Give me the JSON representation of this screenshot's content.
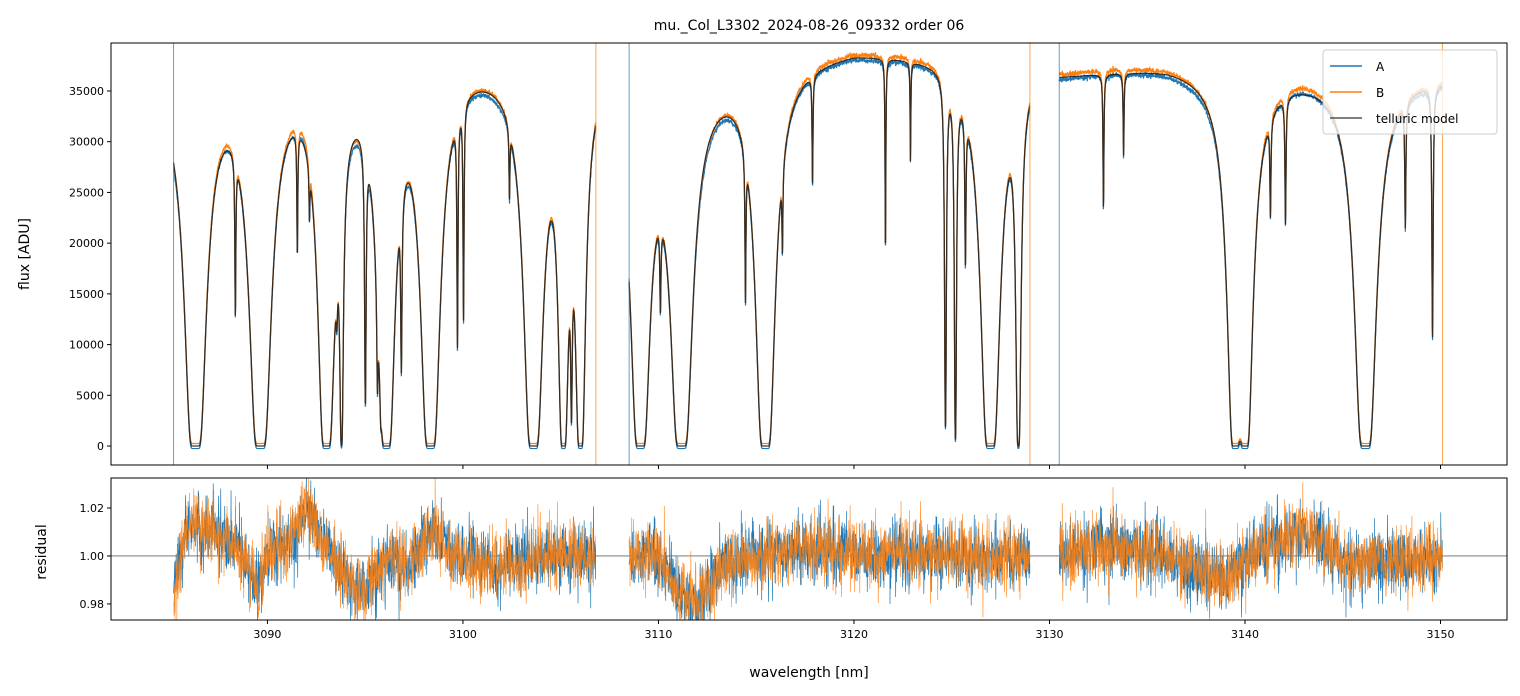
{
  "chart_data": [
    {
      "type": "line",
      "title": "mu._Col_L3302_2024-08-26_09332  order 06",
      "xlabel": "wavelength [nm]",
      "ylabel": "flux [ADU]",
      "xlim": [
        3082.0,
        3153.4
      ],
      "ylim": [
        -1870,
        39730
      ],
      "x_ticks": [
        3090,
        3100,
        3110,
        3120,
        3130,
        3140,
        3150
      ],
      "y_ticks": [
        0,
        5000,
        10000,
        15000,
        20000,
        25000,
        30000,
        35000
      ],
      "y_tick_labels": [
        "0",
        "5000",
        "10000",
        "15000",
        "20000",
        "25000",
        "30000",
        "35000"
      ],
      "legend": {
        "placement": "top-right",
        "entries": [
          "A",
          "B",
          "telluric model"
        ]
      },
      "series": [
        {
          "name": "A",
          "color": "#1f77b4"
        },
        {
          "name": "B",
          "color": "#ff7f0e"
        },
        {
          "name": "telluric model",
          "color": "#000000"
        }
      ],
      "segments": [
        {
          "range": [
            3085.2,
            3106.8
          ],
          "continuum": [
            [
              3085.2,
              37000
            ],
            [
              3090,
              37800
            ],
            [
              3100,
              38600
            ],
            [
              3106.8,
              37800
            ]
          ],
          "lines": [
            [
              3086.32,
              40,
              0.09
            ],
            [
              3088.36,
              0.8,
              0.025
            ],
            [
              3089.64,
              40,
              0.09
            ],
            [
              3091.53,
              0.5,
              0.025
            ],
            [
              3092.15,
              0.2,
              0.025
            ],
            [
              3093.02,
              40,
              0.07
            ],
            [
              3093.55,
              0.3,
              0.04
            ],
            [
              3093.79,
              6,
              0.04
            ],
            [
              3095.01,
              2,
              0.03
            ],
            [
              3095.63,
              1,
              0.03
            ],
            [
              3095.8,
              0.8,
              0.03
            ],
            [
              3096.09,
              40,
              0.07
            ],
            [
              3096.85,
              1.2,
              0.03
            ],
            [
              3098.34,
              40,
              0.08
            ],
            [
              3099.72,
              1.2,
              0.025
            ],
            [
              3100.03,
              1.0,
              0.025
            ],
            [
              3102.38,
              0.25,
              0.025
            ],
            [
              3103.61,
              40,
              0.08
            ],
            [
              3105.14,
              20,
              0.06
            ],
            [
              3105.55,
              2.0,
              0.03
            ],
            [
              3106.01,
              20,
              0.06
            ]
          ]
        },
        {
          "range": [
            3108.5,
            3129.0
          ],
          "continuum": [
            [
              3108.5,
              36000
            ],
            [
              3114,
              37500
            ],
            [
              3120,
              39200
            ],
            [
              3129,
              38000
            ]
          ],
          "lines": [
            [
              3109.08,
              40,
              0.08
            ],
            [
              3110.1,
              0.5,
              0.03
            ],
            [
              3111.18,
              40,
              0.09
            ],
            [
              3114.45,
              0.7,
              0.025
            ],
            [
              3115.47,
              40,
              0.08
            ],
            [
              3116.34,
              0.35,
              0.025
            ],
            [
              3117.88,
              0.35,
              0.025
            ],
            [
              3121.61,
              0.7,
              0.02
            ],
            [
              3122.89,
              0.3,
              0.02
            ],
            [
              3124.68,
              3,
              0.03
            ],
            [
              3125.19,
              4,
              0.03
            ],
            [
              3125.7,
              0.6,
              0.03
            ],
            [
              3126.98,
              40,
              0.08
            ],
            [
              3128.41,
              8,
              0.05
            ]
          ]
        },
        {
          "range": [
            3130.5,
            3150.1
          ],
          "continuum": [
            [
              3130.5,
              36500
            ],
            [
              3136,
              37500
            ],
            [
              3143,
              36800
            ],
            [
              3150.1,
              36500
            ]
          ],
          "lines": [
            [
              3132.76,
              0.45,
              0.025
            ],
            [
              3133.79,
              0.25,
              0.025
            ],
            [
              3139.5,
              30,
              0.07
            ],
            [
              3140.0,
              30,
              0.07
            ],
            [
              3141.3,
              0.35,
              0.03
            ],
            [
              3142.07,
              0.45,
              0.03
            ],
            [
              3146.16,
              40,
              0.09
            ],
            [
              3148.2,
              0.45,
              0.03
            ],
            [
              3149.59,
              1.2,
              0.03
            ]
          ]
        }
      ]
    },
    {
      "type": "line",
      "xlabel": "wavelength [nm]",
      "ylabel": "residual",
      "ylim": [
        0.9733,
        1.0325
      ],
      "y_ticks": [
        0.98,
        1.0,
        1.02
      ],
      "y_tick_labels": [
        "0.98",
        "1.00",
        "1.02"
      ],
      "reference_line": 1.0,
      "noise_sigma": 0.006,
      "trend": [
        [
          [
            3085.2,
            0.985
          ],
          [
            3086,
            1.015
          ],
          [
            3087,
            1.01
          ],
          [
            3088.5,
            1.005
          ],
          [
            3089.5,
            0.985
          ],
          [
            3090,
            1.0
          ],
          [
            3091,
            1.005
          ],
          [
            3092,
            1.02
          ],
          [
            3093,
            1.005
          ],
          [
            3094,
            0.99
          ],
          [
            3095,
            0.985
          ],
          [
            3096,
            1.0
          ],
          [
            3097,
            0.995
          ],
          [
            3098.5,
            1.01
          ],
          [
            3100,
            0.998
          ],
          [
            3102,
            0.995
          ],
          [
            3104,
            1.0
          ],
          [
            3106.8,
            1.0
          ]
        ],
        [
          [
            3108.5,
            1.0
          ],
          [
            3110,
            1.0
          ],
          [
            3111,
            0.985
          ],
          [
            3112,
            0.98
          ],
          [
            3113,
            0.995
          ],
          [
            3115,
            1.0
          ],
          [
            3118,
            1.003
          ],
          [
            3120,
            1.0
          ],
          [
            3123,
            1.002
          ],
          [
            3126,
            1.0
          ],
          [
            3129,
            1.0
          ]
        ],
        [
          [
            3130.5,
            1.0
          ],
          [
            3133,
            1.005
          ],
          [
            3136,
            1.0
          ],
          [
            3139,
            0.99
          ],
          [
            3141,
            1.005
          ],
          [
            3143,
            1.01
          ],
          [
            3145,
            0.998
          ],
          [
            3148,
            0.998
          ],
          [
            3150.1,
            1.0
          ]
        ]
      ]
    }
  ]
}
